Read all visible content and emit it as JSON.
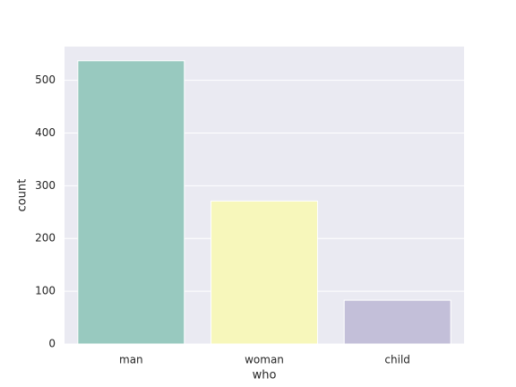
{
  "chart_data": {
    "type": "bar",
    "xlabel": "who",
    "ylabel": "count",
    "categories": [
      "man",
      "woman",
      "child"
    ],
    "values": [
      537,
      271,
      83
    ],
    "colors": [
      "#98c9bf",
      "#f7f7bb",
      "#c3bfd9"
    ],
    "ylim": [
      0,
      563.85
    ],
    "yticks": [
      0,
      100,
      200,
      300,
      400,
      500
    ],
    "grid": true
  }
}
